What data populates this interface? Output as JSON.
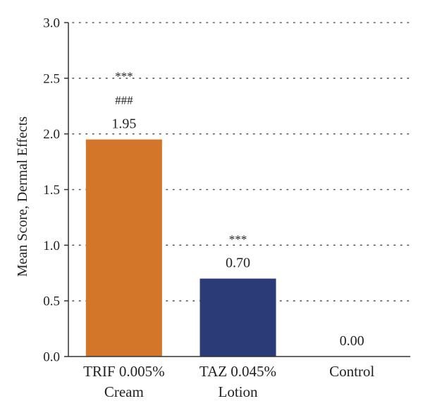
{
  "chart_data": {
    "type": "bar",
    "title": "",
    "xlabel": "",
    "ylabel": "Mean Score, Dermal Effects",
    "ylim": [
      0,
      3.0
    ],
    "yticks": [
      "0.0",
      "0.5",
      "1.0",
      "1.5",
      "2.0",
      "2.5",
      "3.0"
    ],
    "grid": true,
    "legend": "none",
    "categories": [
      [
        "TRIF 0.005%",
        "Cream"
      ],
      [
        "TAZ 0.045%",
        "Lotion"
      ],
      [
        "Control"
      ]
    ],
    "values": [
      1.95,
      0.7,
      0.0
    ],
    "value_labels": [
      "1.95",
      "0.70",
      "0.00"
    ],
    "annotations": [
      [
        "***",
        "###"
      ],
      [
        "***"
      ],
      []
    ],
    "colors": [
      "#d4762a",
      "#2a3b78",
      "#999999"
    ]
  }
}
